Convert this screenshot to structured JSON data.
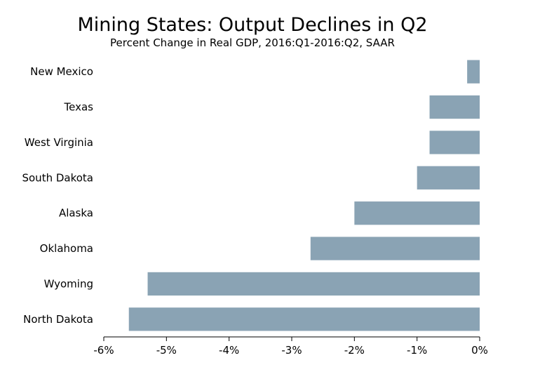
{
  "title": "Mining States: Output Declines in Q2",
  "subtitle": "Percent Change in Real GDP, 2016:Q1-2016:Q2, SAAR",
  "chart_data": {
    "type": "bar",
    "orientation": "horizontal",
    "title": "Mining States: Output Declines in Q2",
    "subtitle": "Percent Change in Real GDP, 2016:Q1-2016:Q2, SAAR",
    "categories": [
      "New Mexico",
      "Texas",
      "West Virginia",
      "South Dakota",
      "Alaska",
      "Oklahoma",
      "Wyoming",
      "North Dakota"
    ],
    "values": [
      -0.2,
      -0.8,
      -0.8,
      -1.0,
      -2.0,
      -2.7,
      -5.3,
      -5.6
    ],
    "xlim": [
      -6,
      0
    ],
    "xticks": [
      -6,
      -5,
      -4,
      -3,
      -2,
      -1,
      0
    ],
    "xtick_labels": [
      "-6%",
      "-5%",
      "-4%",
      "-3%",
      "-2%",
      "-1%",
      "0%"
    ],
    "xlabel": "",
    "ylabel": "",
    "grid": false,
    "legend": false,
    "bar_color": "#8aa3b4"
  }
}
